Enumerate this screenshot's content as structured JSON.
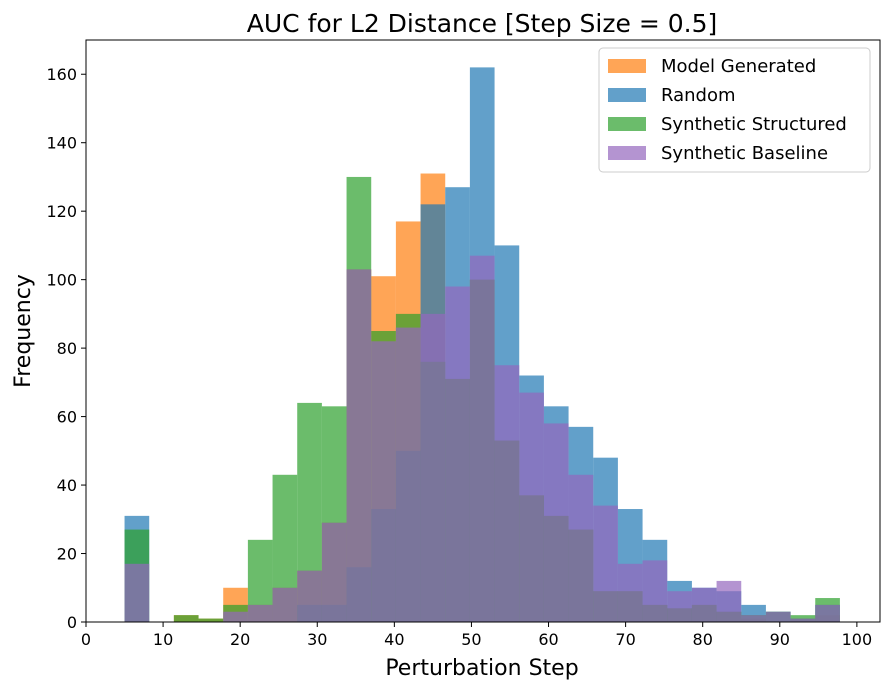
{
  "chart_data": {
    "type": "histogram",
    "title": "AUC for L2 Distance [Step Size = 0.5]",
    "xlabel": "Perturbation Step",
    "ylabel": "Frequency",
    "xlim": [
      0,
      103
    ],
    "ylim": [
      0,
      170
    ],
    "xticks": [
      0,
      10,
      20,
      30,
      40,
      50,
      60,
      70,
      80,
      90,
      100
    ],
    "yticks": [
      0,
      20,
      40,
      60,
      80,
      100,
      120,
      140,
      160
    ],
    "grid": false,
    "legend_position": "top-right",
    "bin_edges": [
      5,
      8.2,
      11.4,
      14.6,
      17.8,
      21.0,
      24.2,
      27.4,
      30.6,
      33.8,
      37.0,
      40.2,
      43.4,
      46.6,
      49.8,
      53.0,
      56.2,
      59.4,
      62.6,
      65.8,
      69.0,
      72.2,
      75.4,
      78.6,
      81.8,
      85.0,
      88.2,
      91.4,
      94.6,
      97.8
    ],
    "series": [
      {
        "name": "Model Generated",
        "color": "#ff7f0e",
        "alpha": 0.7,
        "values": [
          0,
          0,
          2,
          1,
          10,
          5,
          10,
          15,
          29,
          103,
          101,
          117,
          131,
          71,
          100,
          53,
          37,
          31,
          27,
          9,
          9,
          5,
          4,
          5,
          3,
          1,
          0,
          1,
          2
        ]
      },
      {
        "name": "Random",
        "color": "#1f77b4",
        "alpha": 0.7,
        "values": [
          31,
          0,
          0,
          0,
          0,
          0,
          0,
          5,
          5,
          16,
          33,
          50,
          122,
          127,
          162,
          110,
          72,
          63,
          57,
          48,
          33,
          24,
          12,
          10,
          9,
          5,
          3,
          1,
          5
        ]
      },
      {
        "name": "Synthetic Structured",
        "color": "#2ca02c",
        "alpha": 0.7,
        "values": [
          27,
          0,
          2,
          1,
          5,
          24,
          43,
          64,
          63,
          130,
          85,
          90,
          76,
          71,
          100,
          53,
          37,
          31,
          27,
          9,
          9,
          5,
          4,
          5,
          3,
          2,
          3,
          2,
          7
        ]
      },
      {
        "name": "Synthetic Baseline",
        "color": "#9467bd",
        "alpha": 0.7,
        "values": [
          17,
          0,
          0,
          0,
          3,
          5,
          10,
          15,
          29,
          103,
          82,
          86,
          90,
          98,
          107,
          75,
          67,
          58,
          43,
          34,
          17,
          18,
          9,
          10,
          12,
          2,
          3,
          1,
          5
        ]
      }
    ]
  }
}
